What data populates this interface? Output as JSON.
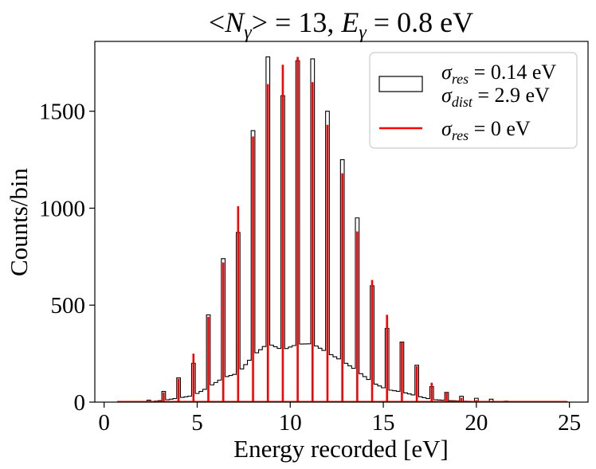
{
  "chart_data": {
    "type": "histogram",
    "title": "<N_γ> = 13, E_γ = 0.8 eV",
    "title_parts": {
      "n_prefix": "<",
      "n_symbol": "N",
      "n_sub": "γ",
      "n_suffix": "> = 13, ",
      "e_symbol": "E",
      "e_sub": "γ",
      "e_suffix": " = 0.8 eV"
    },
    "xlabel": "Energy recorded [eV]",
    "ylabel": "Counts/bin",
    "xlim": [
      -0.5,
      26.0
    ],
    "ylim": [
      0,
      1860
    ],
    "x_ticks": [
      0,
      5,
      10,
      15,
      20,
      25
    ],
    "y_ticks": [
      0,
      500,
      1000,
      1500
    ],
    "grid": false,
    "legend_position": "top-right",
    "legend": {
      "series1_line1_symbol": "σ",
      "series1_line1_sub": "res",
      "series1_line1_text": " = 0.14 eV",
      "series1_line2_symbol": "σ",
      "series1_line2_sub": "dist",
      "series1_line2_text": " = 2.9 eV",
      "series2_symbol": "σ",
      "series2_sub": "res",
      "series2_text": " = 0 eV"
    },
    "colors": {
      "histogram_edge": "#000000",
      "ideal_line": "#ff0000"
    },
    "series": [
      {
        "kind": "step-histogram",
        "bin_edges_start": 0.7,
        "bin_width": 0.2,
        "counts": [
          0,
          0,
          0,
          0,
          0,
          0,
          0,
          0,
          0,
          0,
          0,
          0,
          0,
          0,
          0,
          0,
          0,
          0,
          0,
          0,
          0,
          0,
          0,
          0,
          0,
          0,
          0,
          0,
          0,
          0,
          0,
          0,
          0,
          0,
          0,
          0,
          0,
          0,
          0,
          0,
          0,
          0,
          0,
          0,
          0,
          0,
          0,
          0,
          0,
          0,
          0,
          0,
          0,
          0,
          0,
          0,
          0,
          0,
          0,
          0,
          0,
          0,
          0,
          0,
          0,
          0,
          0,
          0,
          0,
          0,
          0,
          0,
          0,
          0,
          0,
          0,
          0,
          0,
          0,
          0,
          0,
          0,
          0,
          0,
          0,
          0,
          0,
          0,
          0,
          0,
          0,
          0,
          0,
          0,
          0,
          0,
          0,
          0,
          0,
          0,
          0,
          0,
          0,
          0,
          0,
          0,
          0,
          0,
          0,
          0,
          0,
          0,
          0,
          0,
          0,
          0,
          0,
          0,
          0,
          0,
          0
        ],
        "profile": [
          [
            2.4,
            10
          ],
          [
            3.2,
            55
          ],
          [
            4.0,
            125
          ],
          [
            4.8,
            200
          ],
          [
            5.6,
            450
          ],
          [
            6.4,
            740
          ],
          [
            7.2,
            875
          ],
          [
            8.0,
            1400
          ],
          [
            8.8,
            1780
          ],
          [
            9.6,
            1580
          ],
          [
            10.4,
            1760
          ],
          [
            11.2,
            1770
          ],
          [
            12.0,
            1500
          ],
          [
            12.8,
            1250
          ],
          [
            13.6,
            950
          ],
          [
            14.4,
            600
          ],
          [
            15.2,
            380
          ],
          [
            16.0,
            310
          ],
          [
            16.8,
            190
          ],
          [
            17.6,
            80
          ],
          [
            18.4,
            50
          ],
          [
            19.2,
            30
          ],
          [
            20.0,
            20
          ],
          [
            20.8,
            15
          ],
          [
            21.6,
            5
          ]
        ],
        "valley_fraction": 0.17
      },
      {
        "kind": "ideal-lines",
        "peaks_x": [
          0.8,
          1.6,
          2.4,
          3.2,
          4.0,
          4.8,
          5.6,
          6.4,
          7.2,
          8.0,
          8.8,
          9.6,
          10.4,
          11.2,
          12.0,
          12.8,
          13.6,
          14.4,
          15.2,
          16.0,
          16.8,
          17.6,
          18.4,
          19.2,
          20.0,
          20.8,
          21.6,
          22.4,
          23.2,
          24.0
        ],
        "peaks_y": [
          0,
          1,
          5,
          50,
          120,
          250,
          440,
          720,
          1010,
          1370,
          1640,
          1740,
          1780,
          1650,
          1430,
          1180,
          880,
          630,
          450,
          310,
          185,
          100,
          50,
          22,
          10,
          5,
          2,
          1,
          0,
          0
        ],
        "baseline_range": [
          0.7,
          24.9
        ]
      }
    ]
  }
}
